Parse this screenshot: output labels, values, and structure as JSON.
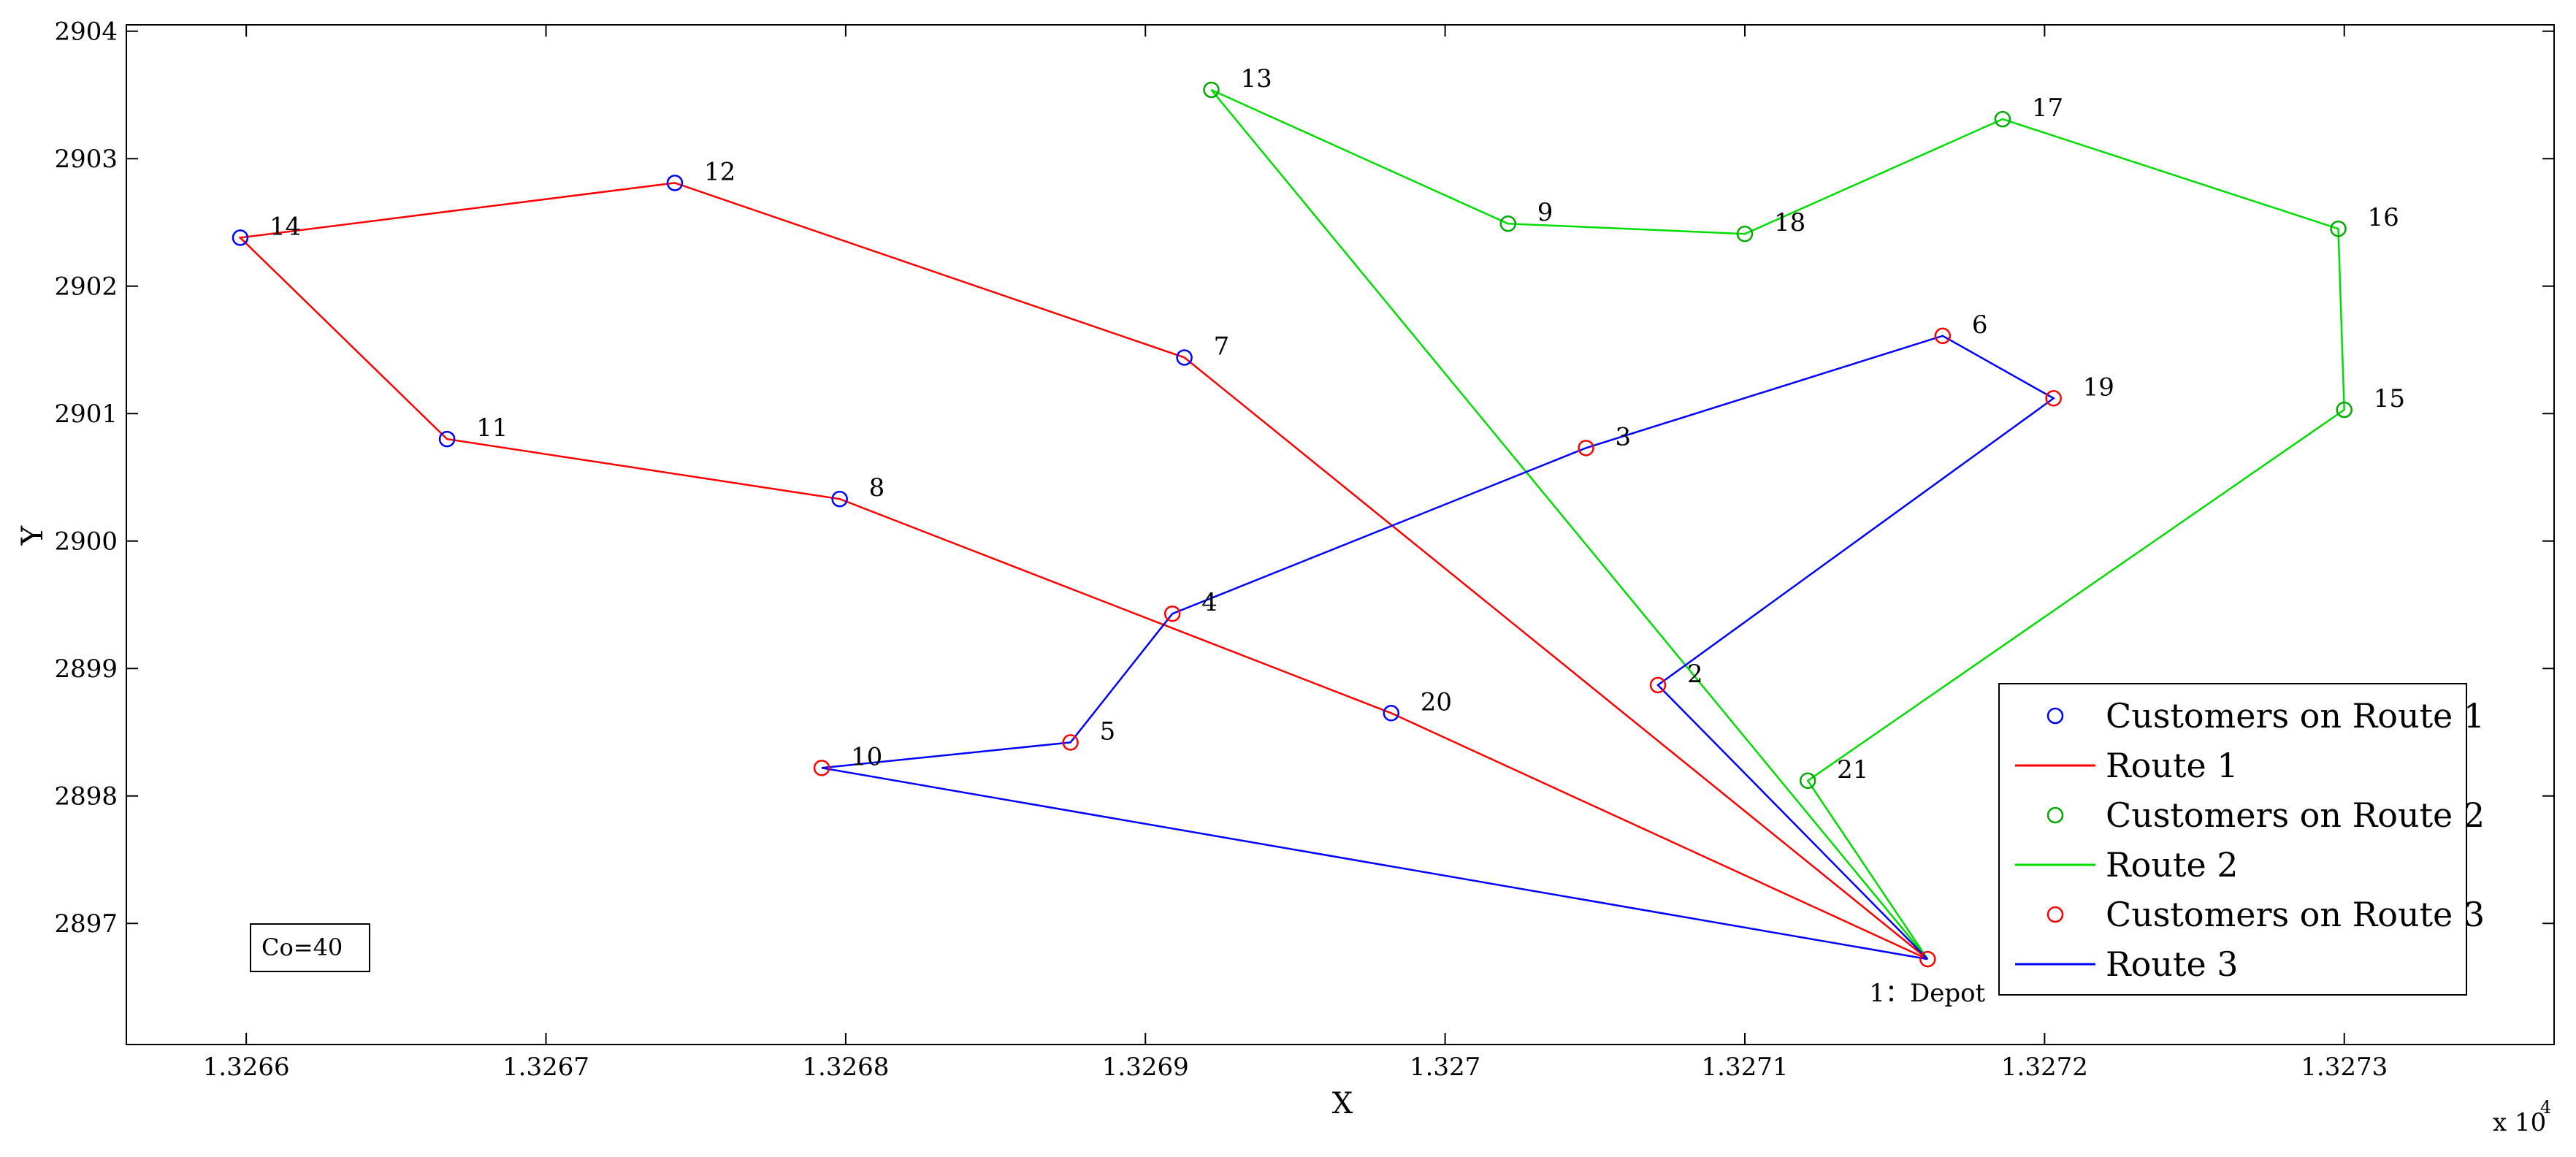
{
  "chart_data": {
    "type": "line",
    "xlabel": "X",
    "ylabel": "Y",
    "x_multiplier": "x 10",
    "x_multiplier_exp": "4",
    "xlim": [
      1.32656,
      1.32737
    ],
    "ylim": [
      2896.05,
      2904.05
    ],
    "x_ticks": [
      {
        "value": 1.3266,
        "label": "1.3266"
      },
      {
        "value": 1.3267,
        "label": "1.3267"
      },
      {
        "value": 1.3268,
        "label": "1.3268"
      },
      {
        "value": 1.3269,
        "label": "1.3269"
      },
      {
        "value": 1.327,
        "label": "1.327"
      },
      {
        "value": 1.3271,
        "label": "1.3271"
      },
      {
        "value": 1.3272,
        "label": "1.3272"
      },
      {
        "value": 1.3273,
        "label": "1.3273"
      }
    ],
    "y_ticks": [
      {
        "value": 2897,
        "label": "2897"
      },
      {
        "value": 2898,
        "label": "2898"
      },
      {
        "value": 2899,
        "label": "2899"
      },
      {
        "value": 2900,
        "label": "2900"
      },
      {
        "value": 2901,
        "label": "2901"
      },
      {
        "value": 2902,
        "label": "2902"
      },
      {
        "value": 2903,
        "label": "2903"
      },
      {
        "value": 2904,
        "label": "2904"
      }
    ],
    "grid": false,
    "legend_position": "bottom-right",
    "annotation": "Co=40",
    "points": [
      {
        "label": "1：Depot",
        "x": 1.327161,
        "y": 2896.72,
        "color": "#ff0000",
        "label_pos": "below"
      },
      {
        "label": "2",
        "x": 1.327071,
        "y": 2898.87,
        "color": "#ff0000",
        "label_pos": "right"
      },
      {
        "label": "3",
        "x": 1.327047,
        "y": 2900.73,
        "color": "#ff0000",
        "label_pos": "right"
      },
      {
        "label": "4",
        "x": 1.326909,
        "y": 2899.43,
        "color": "#ff0000",
        "label_pos": "right"
      },
      {
        "label": "5",
        "x": 1.326875,
        "y": 2898.42,
        "color": "#ff0000",
        "label_pos": "right"
      },
      {
        "label": "6",
        "x": 1.327166,
        "y": 2901.61,
        "color": "#ff0000",
        "label_pos": "right"
      },
      {
        "label": "7",
        "x": 1.326913,
        "y": 2901.44,
        "color": "#0000ff",
        "label_pos": "right"
      },
      {
        "label": "8",
        "x": 1.326798,
        "y": 2900.33,
        "color": "#0000ff",
        "label_pos": "right"
      },
      {
        "label": "9",
        "x": 1.327021,
        "y": 2902.49,
        "color": "#00aa00",
        "label_pos": "right"
      },
      {
        "label": "10",
        "x": 1.326792,
        "y": 2898.22,
        "color": "#ff0000",
        "label_pos": "right"
      },
      {
        "label": "11",
        "x": 1.326667,
        "y": 2900.8,
        "color": "#0000ff",
        "label_pos": "right"
      },
      {
        "label": "12",
        "x": 1.326743,
        "y": 2902.81,
        "color": "#0000ff",
        "label_pos": "right"
      },
      {
        "label": "13",
        "x": 1.326922,
        "y": 2903.54,
        "color": "#00aa00",
        "label_pos": "right"
      },
      {
        "label": "14",
        "x": 1.326598,
        "y": 2902.38,
        "color": "#0000ff",
        "label_pos": "right"
      },
      {
        "label": "15",
        "x": 1.3273,
        "y": 2901.03,
        "color": "#00aa00",
        "label_pos": "right"
      },
      {
        "label": "16",
        "x": 1.327298,
        "y": 2902.45,
        "color": "#00aa00",
        "label_pos": "right"
      },
      {
        "label": "17",
        "x": 1.327186,
        "y": 2903.31,
        "color": "#00aa00",
        "label_pos": "right"
      },
      {
        "label": "18",
        "x": 1.3271,
        "y": 2902.41,
        "color": "#00aa00",
        "label_pos": "right"
      },
      {
        "label": "19",
        "x": 1.327203,
        "y": 2901.12,
        "color": "#ff0000",
        "label_pos": "right"
      },
      {
        "label": "20",
        "x": 1.326982,
        "y": 2898.65,
        "color": "#0000ff",
        "label_pos": "right"
      },
      {
        "label": "21",
        "x": 1.327121,
        "y": 2898.12,
        "color": "#00aa00",
        "label_pos": "right"
      }
    ],
    "series": [
      {
        "name": "Route 1",
        "color": "#ff0000",
        "stops": [
          "1：Depot",
          "7",
          "12",
          "14",
          "11",
          "8",
          "20",
          "1：Depot"
        ]
      },
      {
        "name": "Route 2",
        "color": "#00dd00",
        "stops": [
          "1：Depot",
          "13",
          "9",
          "18",
          "17",
          "16",
          "15",
          "21",
          "1：Depot"
        ]
      },
      {
        "name": "Route 3",
        "color": "#0000ff",
        "stops": [
          "1：Depot",
          "2",
          "19",
          "6",
          "3",
          "4",
          "5",
          "10",
          "1：Depot"
        ]
      }
    ],
    "legend": [
      {
        "kind": "marker",
        "label": "Customers on Route 1",
        "color": "#0000ff"
      },
      {
        "kind": "line",
        "label": "Route 1",
        "color": "#ff0000"
      },
      {
        "kind": "marker",
        "label": "Customers on Route 2",
        "color": "#00aa00"
      },
      {
        "kind": "line",
        "label": "Route 2",
        "color": "#00dd00"
      },
      {
        "kind": "marker",
        "label": "Customers on Route 3",
        "color": "#ff0000"
      },
      {
        "kind": "line",
        "label": "Route 3",
        "color": "#0000ff"
      }
    ]
  }
}
